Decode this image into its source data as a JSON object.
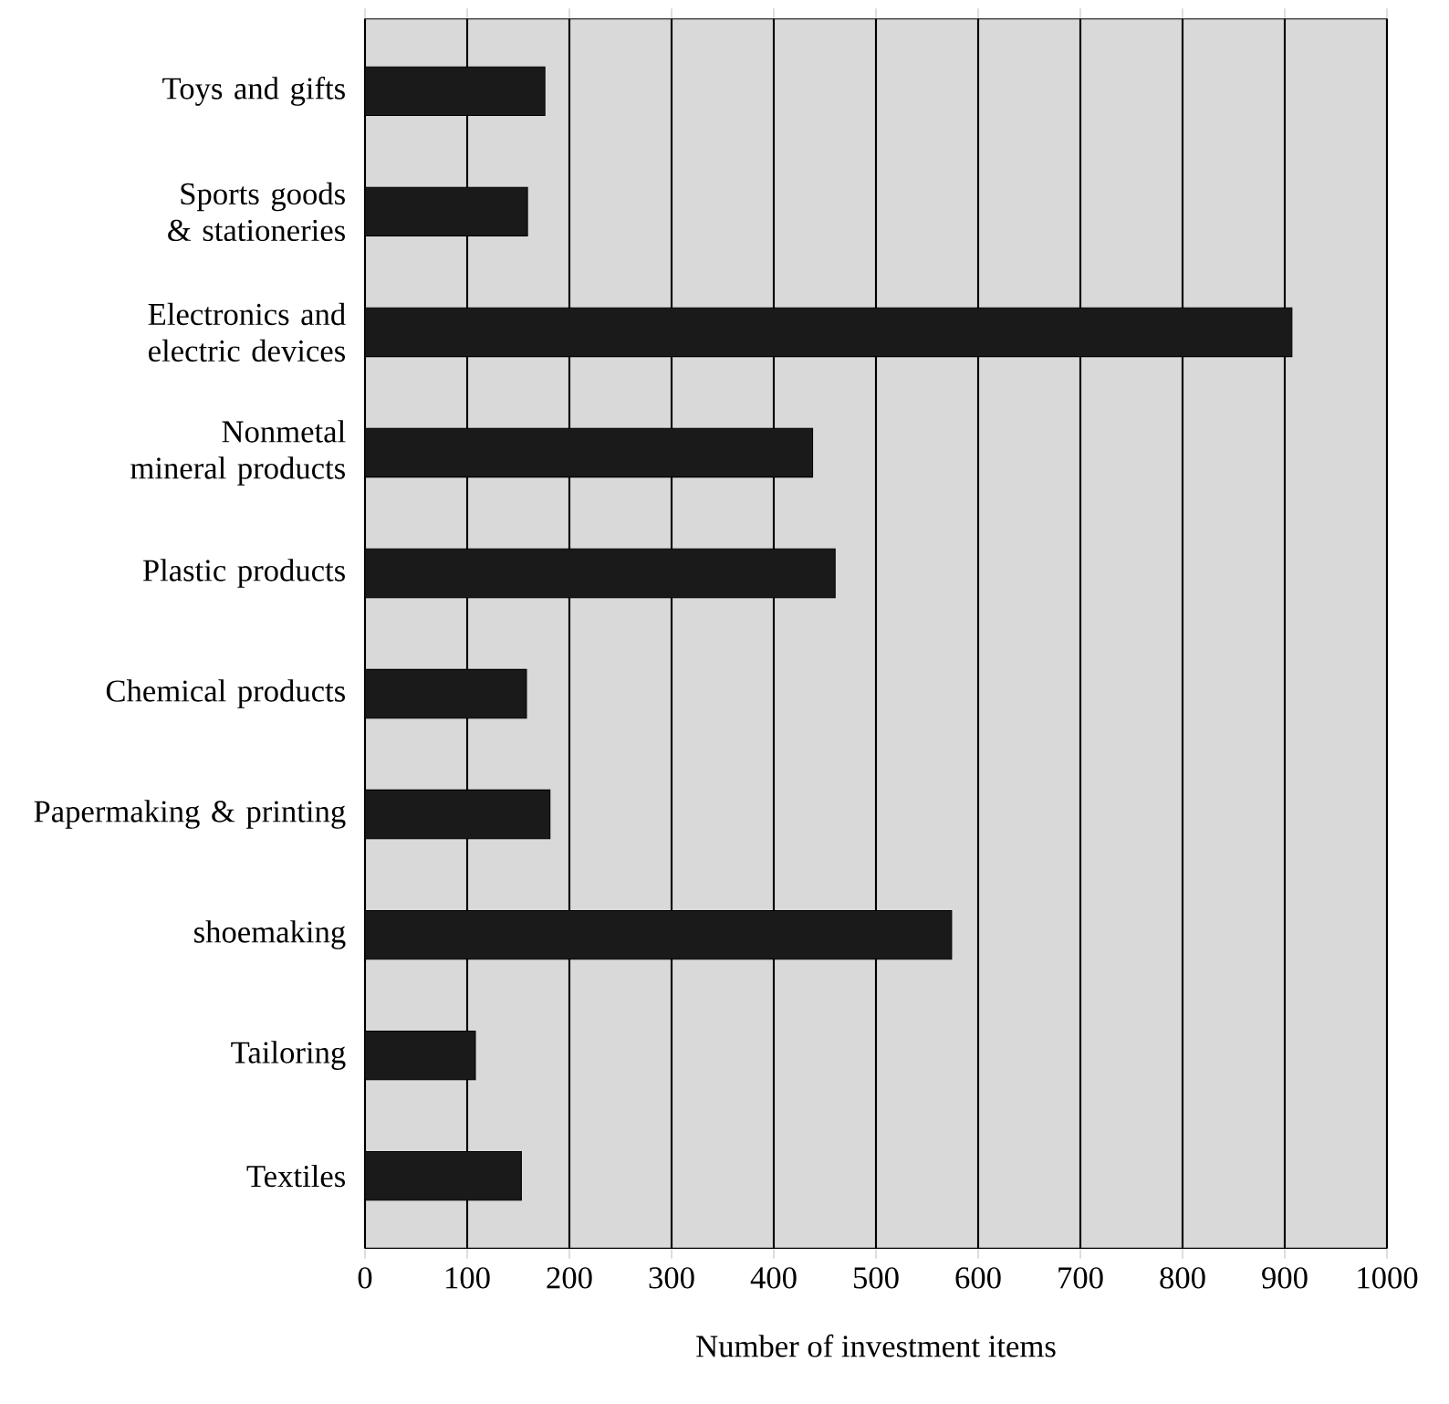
{
  "chart_data": {
    "type": "bar",
    "orientation": "horizontal",
    "xlabel": "Number of investment items",
    "categories": [
      "Toys and gifts",
      "Sports goods & stationeries",
      "Electronics and electric devices",
      "Nonmetal mineral products",
      "Plastic products",
      "Chemical products",
      "Papermaking & printing",
      "shoemaking",
      "Tailoring",
      "Textiles"
    ],
    "values": [
      176,
      159,
      907,
      438,
      460,
      158,
      181,
      574,
      108,
      153
    ],
    "color": "#1a1a1a",
    "xlim": [
      0,
      1000
    ],
    "xticks": [
      0,
      100,
      200,
      300,
      400,
      500,
      600,
      700,
      800,
      900,
      1000
    ],
    "grid": "x"
  }
}
